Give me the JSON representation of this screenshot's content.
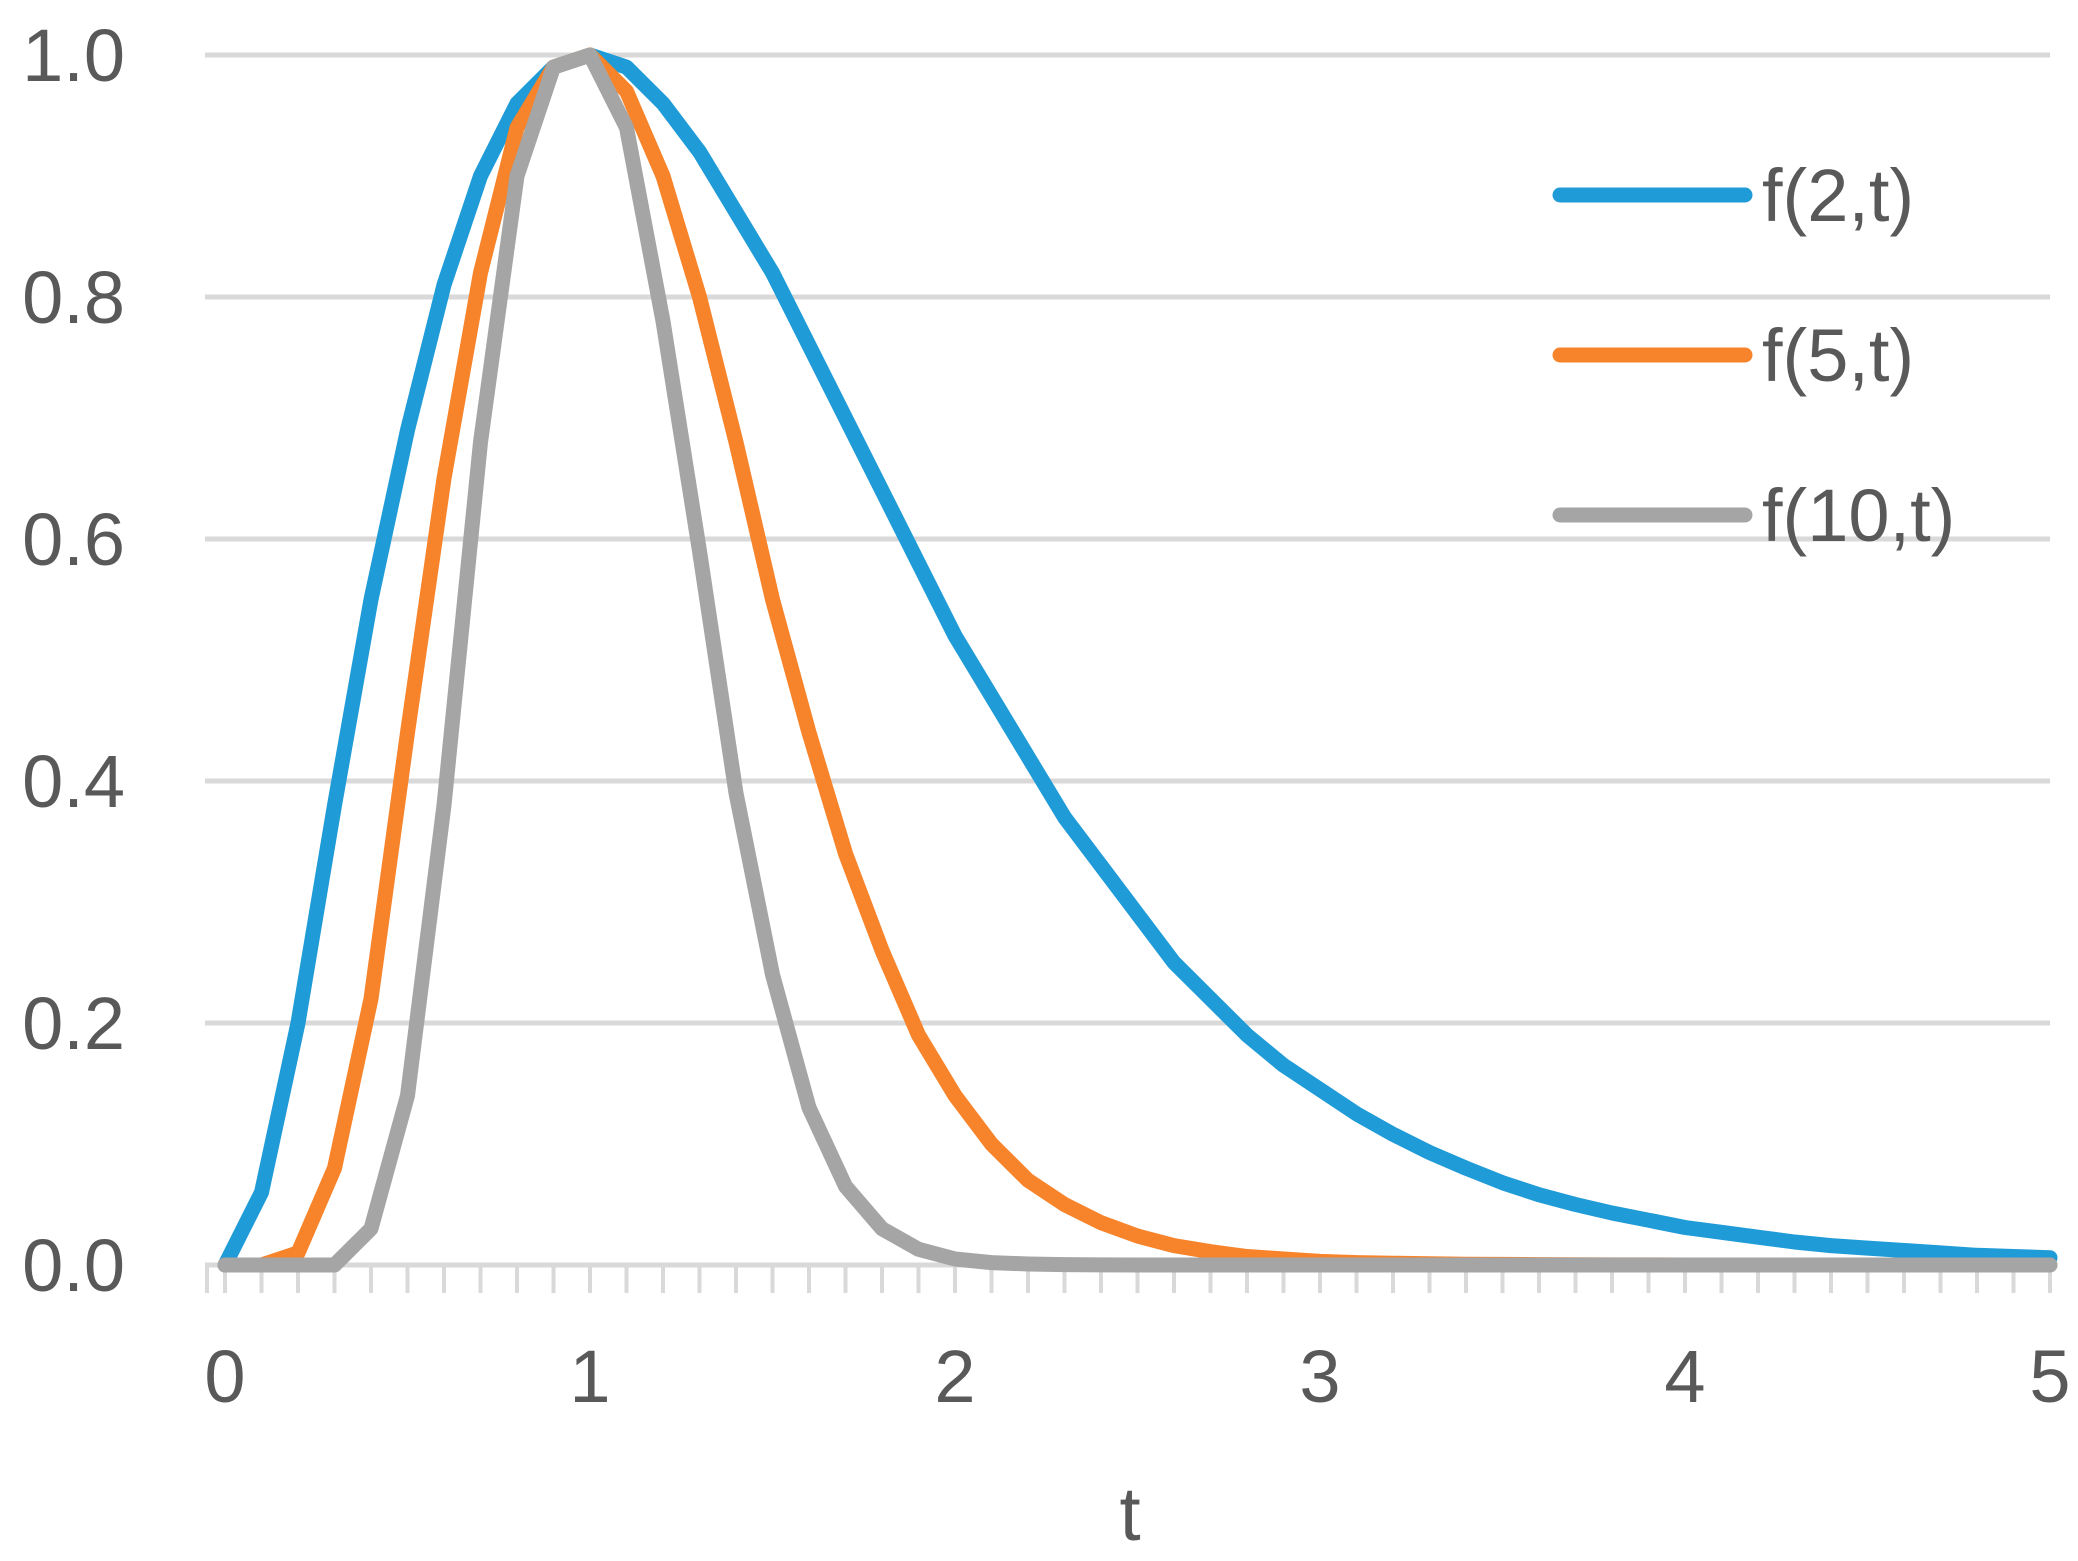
{
  "chart_data": {
    "type": "line",
    "title": "",
    "xlabel": "t",
    "ylabel": "",
    "xlim": [
      0,
      5
    ],
    "ylim": [
      0,
      1
    ],
    "x_ticks": [
      "0",
      "1",
      "2",
      "3",
      "4",
      "5"
    ],
    "y_ticks": [
      "0.0",
      "0.2",
      "0.4",
      "0.6",
      "0.8",
      "1.0"
    ],
    "grid": "horizontal",
    "legend_position": "top-right",
    "x": [
      0,
      0.1,
      0.2,
      0.3,
      0.4,
      0.5,
      0.6,
      0.7,
      0.8,
      0.9,
      1.0,
      1.1,
      1.2,
      1.3,
      1.4,
      1.5,
      1.6,
      1.7,
      1.8,
      1.9,
      2.0,
      2.1,
      2.2,
      2.3,
      2.4,
      2.5,
      2.6,
      2.7,
      2.8,
      2.9,
      3.0,
      3.1,
      3.2,
      3.3,
      3.4,
      3.5,
      3.6,
      3.7,
      3.8,
      3.9,
      4.0,
      4.1,
      4.2,
      4.3,
      4.4,
      4.5,
      4.6,
      4.7,
      4.8,
      4.9,
      5.0
    ],
    "series": [
      {
        "name": "f(2,t)",
        "color": "#1f9bd7",
        "values": [
          0.0,
          0.06,
          0.2,
          0.38,
          0.55,
          0.69,
          0.81,
          0.9,
          0.96,
          0.99,
          1.0,
          0.99,
          0.96,
          0.92,
          0.87,
          0.82,
          0.76,
          0.7,
          0.64,
          0.58,
          0.52,
          0.47,
          0.42,
          0.37,
          0.33,
          0.29,
          0.25,
          0.22,
          0.19,
          0.165,
          0.145,
          0.125,
          0.108,
          0.093,
          0.08,
          0.068,
          0.058,
          0.05,
          0.043,
          0.037,
          0.031,
          0.027,
          0.023,
          0.019,
          0.016,
          0.014,
          0.012,
          0.01,
          0.008,
          0.007,
          0.006
        ]
      },
      {
        "name": "f(5,t)",
        "color": "#f7832a",
        "values": [
          0.0,
          0.0,
          0.01,
          0.08,
          0.22,
          0.44,
          0.65,
          0.82,
          0.94,
          0.99,
          1.0,
          0.97,
          0.9,
          0.8,
          0.68,
          0.55,
          0.44,
          0.34,
          0.26,
          0.19,
          0.14,
          0.1,
          0.07,
          0.05,
          0.035,
          0.024,
          0.016,
          0.011,
          0.007,
          0.005,
          0.003,
          0.002,
          0.0015,
          0.001,
          0.0007,
          0.0005,
          0.0003,
          0.0002,
          0.0001,
          0.0001,
          0.0,
          0.0,
          0.0,
          0.0,
          0.0,
          0.0,
          0.0,
          0.0,
          0.0,
          0.0,
          0.0
        ]
      },
      {
        "name": "f(10,t)",
        "color": "#a5a5a5",
        "values": [
          0.0,
          0.0,
          0.0,
          0.0,
          0.03,
          0.14,
          0.38,
          0.68,
          0.9,
          0.99,
          1.0,
          0.94,
          0.78,
          0.59,
          0.39,
          0.24,
          0.13,
          0.065,
          0.03,
          0.013,
          0.005,
          0.002,
          0.0008,
          0.0003,
          0.0001,
          0.0,
          0.0,
          0.0,
          0.0,
          0.0,
          0.0,
          0.0,
          0.0,
          0.0,
          0.0,
          0.0,
          0.0,
          0.0,
          0.0,
          0.0,
          0.0,
          0.0,
          0.0,
          0.0,
          0.0,
          0.0,
          0.0,
          0.0,
          0.0,
          0.0,
          0.0
        ]
      }
    ]
  }
}
